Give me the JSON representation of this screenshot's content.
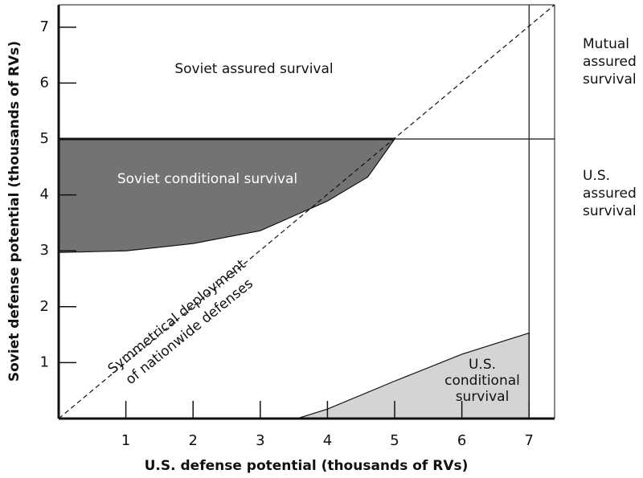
{
  "chart_data": {
    "type": "region",
    "xlabel": "U.S. defense potential (thousands of RVs)",
    "ylabel": "Soviet defense potential (thousands of  RVs)",
    "xlim": [
      0,
      7.38
    ],
    "ylim": [
      0,
      7.4
    ],
    "xticks": [
      1,
      2,
      3,
      4,
      5,
      6,
      7
    ],
    "yticks": [
      1,
      2,
      3,
      4,
      5,
      6,
      7
    ],
    "regions": [
      {
        "label_lines": [
          "Soviet conditional survival"
        ],
        "color": "#737373",
        "text_color": "#ffffff",
        "x": [
          0,
          1,
          2,
          3,
          4,
          4.6,
          5
        ],
        "upper": [
          5,
          5,
          5,
          5,
          5,
          5,
          5
        ],
        "lower": [
          2.97,
          3.0,
          3.13,
          3.36,
          3.89,
          4.32,
          5
        ]
      },
      {
        "label_lines": [
          "U.S.",
          "conditional",
          "survival"
        ],
        "color": "#d4d4d4",
        "text_color": "#111111",
        "x": [
          3.55,
          4,
          5,
          6,
          7
        ],
        "upper": [
          0,
          0.17,
          0.67,
          1.15,
          1.53
        ],
        "lower": [
          0,
          0,
          0,
          0,
          0
        ]
      }
    ],
    "reference_lines": [
      {
        "x": [
          0,
          7.38
        ],
        "y": [
          0,
          7.4
        ],
        "style": "dashed"
      },
      {
        "x": [
          0,
          7.38
        ],
        "y": [
          5,
          5
        ],
        "style": "solid"
      },
      {
        "x": [
          7,
          7
        ],
        "y": [
          0,
          7.4
        ],
        "style": "solid"
      }
    ],
    "annotations": [
      {
        "lines": [
          "Soviet assured survival"
        ]
      },
      {
        "lines": [
          "Mutual",
          "assured",
          "survival"
        ]
      },
      {
        "lines": [
          "U.S.",
          "assured",
          "survival"
        ]
      },
      {
        "lines": [
          "Symmetrical deployment",
          "of nationwide defenses"
        ]
      }
    ]
  }
}
